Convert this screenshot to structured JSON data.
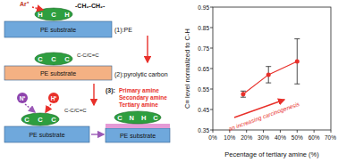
{
  "diagram": {
    "step1": {
      "ion": "Ar⁺",
      "chain": "-CH₂-CH₂-",
      "atoms": [
        "H",
        "C",
        "H"
      ],
      "substrate": "PE substrate",
      "label": "(1):PE"
    },
    "step2": {
      "atoms": [
        "C",
        "C",
        "C"
      ],
      "bond": "C-C/C=C",
      "substrate": "PE substrate",
      "label": "(2):pyrolytic carbon"
    },
    "step3": {
      "ions": [
        "N⁺",
        "H⁺"
      ],
      "atoms": [
        "C",
        "C",
        "C"
      ],
      "bond": "C-C/C=C",
      "substrate": "PE substrate",
      "result_atoms": [
        "C",
        "N",
        "H",
        "C"
      ],
      "result_substrate": "PE substrate",
      "label": "(3):",
      "products": [
        "Primary amine",
        "Secondary amine",
        "Tertiary amine"
      ]
    }
  },
  "chart_data": {
    "type": "line",
    "marker": "circle",
    "color": "#e8302a",
    "x_label": "Pecentage of tertiary amine (%)",
    "y_label": "C≡ level normalized to C-H",
    "annotation": "an increasing carcinogenesis",
    "x": [
      18,
      33,
      50
    ],
    "values": [
      0.525,
      0.62,
      0.685
    ],
    "errors": [
      0.015,
      0.04,
      0.11
    ],
    "xlim": [
      0,
      70
    ],
    "xticks": [
      {
        "value": 0,
        "label": "0%"
      },
      {
        "value": 10,
        "label": "10%"
      },
      {
        "value": 20,
        "label": "20%"
      },
      {
        "value": 30,
        "label": "30%"
      },
      {
        "value": 40,
        "label": "40%"
      },
      {
        "value": 50,
        "label": "50%"
      },
      {
        "value": 60,
        "label": "60%"
      },
      {
        "value": 70,
        "label": "70%"
      }
    ],
    "ylim": [
      0.35,
      0.95
    ],
    "yticks": [
      0.35,
      0.45,
      0.55,
      0.65,
      0.75,
      0.85,
      0.95
    ],
    "grid": false
  }
}
